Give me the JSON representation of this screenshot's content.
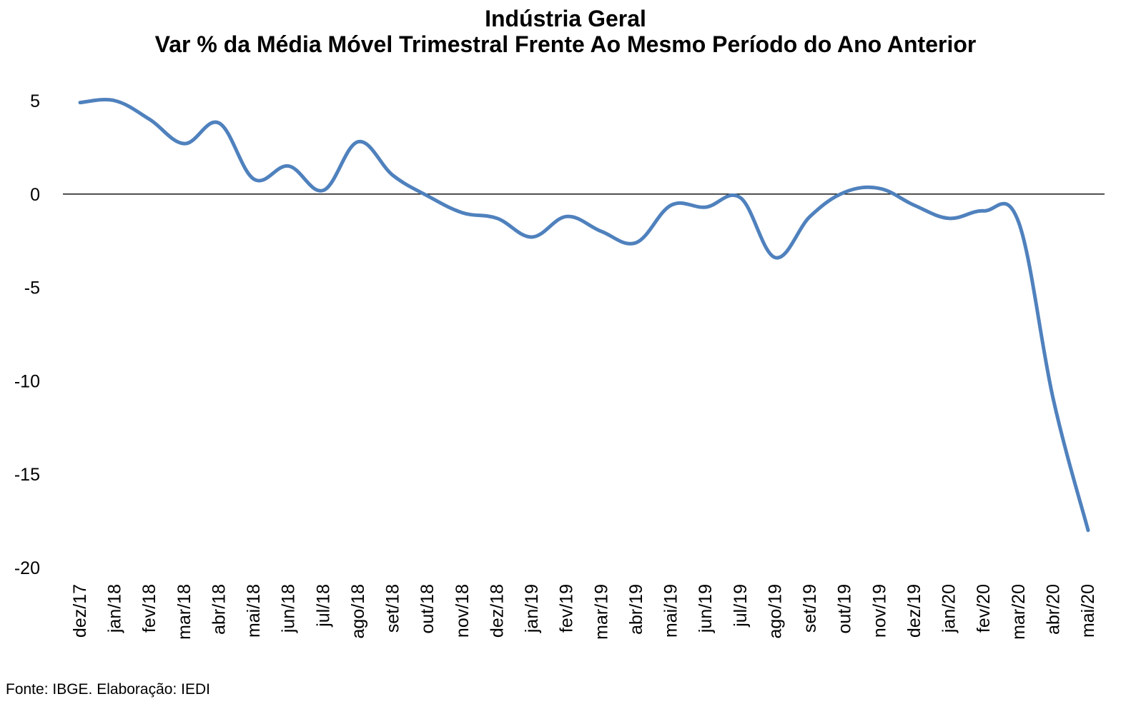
{
  "chart_data": {
    "type": "line",
    "title": "Indústria Geral",
    "subtitle": "Var % da Média Móvel Trimestral Frente Ao Mesmo Período do Ano Anterior",
    "xlabel": "",
    "ylabel": "",
    "ylim": [
      -20,
      5
    ],
    "yticks": [
      "5",
      "0",
      "-5",
      "-10",
      "-15",
      "-20"
    ],
    "yticks_values": [
      5,
      0,
      -5,
      -10,
      -15,
      -20
    ],
    "grid": false,
    "legend": "none",
    "line_color": "#4f81bd",
    "categories": [
      "dez/17",
      "jan/18",
      "fev/18",
      "mar/18",
      "abr/18",
      "mai/18",
      "jun/18",
      "jul/18",
      "ago/18",
      "set/18",
      "out/18",
      "nov/18",
      "dez/18",
      "jan/19",
      "fev/19",
      "mar/19",
      "abr/19",
      "mai/19",
      "jun/19",
      "jul/19",
      "ago/19",
      "set/19",
      "out/19",
      "nov/19",
      "dez/19",
      "jan/20",
      "fev/20",
      "mar/20",
      "abr/20",
      "mai/20"
    ],
    "series": [
      {
        "values": [
          4.9,
          5.0,
          4.0,
          2.7,
          3.8,
          0.8,
          1.5,
          0.2,
          2.8,
          1.0,
          -0.1,
          -1.0,
          -1.3,
          -2.3,
          -1.2,
          -2.0,
          -2.6,
          -0.6,
          -0.7,
          -0.2,
          -3.4,
          -1.2,
          0.1,
          0.3,
          -0.6,
          -1.3,
          -0.9,
          -1.5,
          -11.0,
          -18.0
        ]
      }
    ]
  },
  "source": "Fonte: IBGE. Elaboração: IEDI"
}
